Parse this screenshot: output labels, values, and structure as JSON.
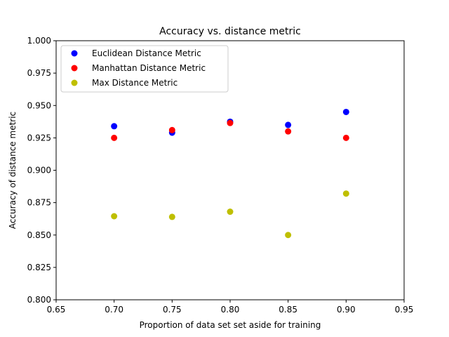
{
  "chart_data": {
    "type": "scatter",
    "title": "Accuracy vs. distance metric",
    "xlabel": "Proportion of data set set aside for training",
    "ylabel": "Accuracy of distance metric",
    "xlim": [
      0.65,
      0.95
    ],
    "ylim": [
      0.8,
      1.0
    ],
    "xticks": [
      "0.65",
      "0.70",
      "0.75",
      "0.80",
      "0.85",
      "0.90",
      "0.95"
    ],
    "yticks": [
      "0.800",
      "0.825",
      "0.850",
      "0.875",
      "0.900",
      "0.925",
      "0.950",
      "0.975",
      "1.000"
    ],
    "grid": false,
    "legend_position": "top-left",
    "x": [
      0.7,
      0.75,
      0.8,
      0.85,
      0.9
    ],
    "series": [
      {
        "name": "Euclidean Distance Metric",
        "color": "#0000ff",
        "values": [
          0.934,
          0.929,
          0.9375,
          0.935,
          0.945
        ]
      },
      {
        "name": "Manhattan Distance Metric",
        "color": "#ff0000",
        "values": [
          0.925,
          0.931,
          0.9365,
          0.93,
          0.925
        ]
      },
      {
        "name": "Max Distance Metric",
        "color": "#bfbf00",
        "values": [
          0.8645,
          0.864,
          0.868,
          0.85,
          0.882
        ]
      }
    ]
  }
}
